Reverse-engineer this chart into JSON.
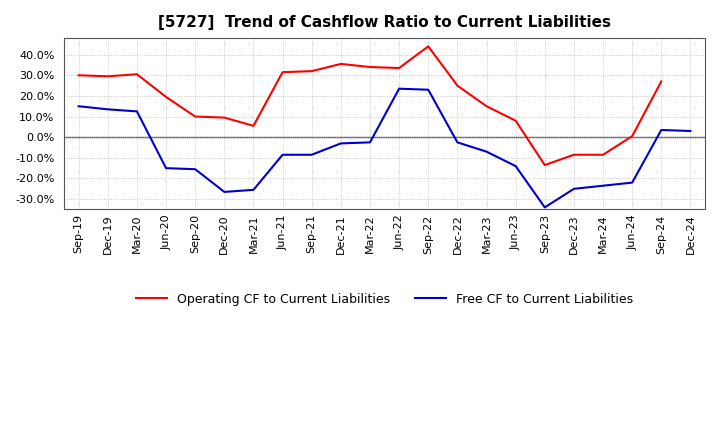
{
  "title": "[5727]  Trend of Cashflow Ratio to Current Liabilities",
  "x_labels": [
    "Sep-19",
    "Dec-19",
    "Mar-20",
    "Jun-20",
    "Sep-20",
    "Dec-20",
    "Mar-21",
    "Jun-21",
    "Sep-21",
    "Dec-21",
    "Mar-22",
    "Jun-22",
    "Sep-22",
    "Dec-22",
    "Mar-23",
    "Jun-23",
    "Sep-23",
    "Dec-23",
    "Mar-24",
    "Jun-24",
    "Sep-24",
    "Dec-24"
  ],
  "operating_cf": [
    30.0,
    29.5,
    30.5,
    19.5,
    10.0,
    9.5,
    5.5,
    31.5,
    32.0,
    35.5,
    34.0,
    33.5,
    44.0,
    25.0,
    15.0,
    8.0,
    -13.5,
    -8.5,
    -8.5,
    0.5,
    27.0,
    null
  ],
  "free_cf": [
    15.0,
    13.5,
    12.5,
    -15.0,
    -15.5,
    -26.5,
    -25.5,
    -8.5,
    -8.5,
    -3.0,
    -2.5,
    23.5,
    23.0,
    -2.5,
    -7.0,
    -14.0,
    -34.0,
    -25.0,
    -23.5,
    -22.0,
    3.5,
    3.0
  ],
  "operating_color": "#FF0000",
  "free_color": "#0000CC",
  "ylim": [
    -35,
    48
  ],
  "yticks": [
    -30.0,
    -20.0,
    -10.0,
    0.0,
    10.0,
    20.0,
    30.0,
    40.0
  ],
  "background_color": "#FFFFFF",
  "grid_color": "#AAAAAA",
  "legend_op": "Operating CF to Current Liabilities",
  "legend_free": "Free CF to Current Liabilities",
  "title_fontsize": 11,
  "tick_fontsize": 8,
  "legend_fontsize": 9
}
